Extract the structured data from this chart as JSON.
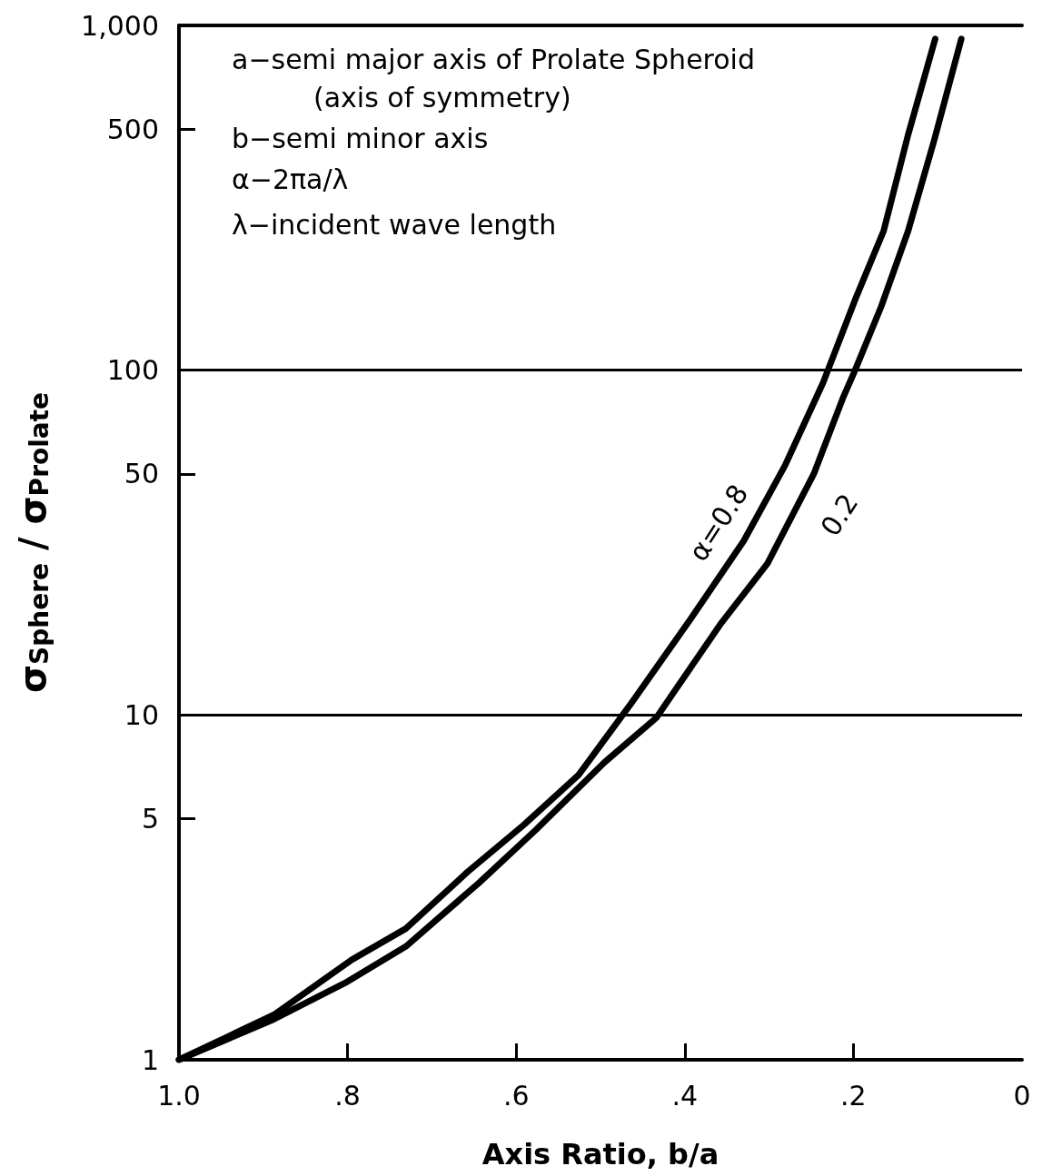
{
  "chart_data": {
    "type": "line",
    "xlabel": "Axis Ratio, b/a",
    "ylabel": "σ$_{Sphere}$ / σ$_{Prolate}$",
    "annotations": [
      "a−semi major axis of Prolate Spheroid\n(axis of symmetry)",
      "b−semi minor axis",
      "α−2πa/λ",
      "λ−incident wave length"
    ],
    "log": "y",
    "xlim": [
      1,
      0
    ],
    "xticks": [
      {
        "value": 1,
        "label": "1.0"
      },
      {
        "value": 0.8,
        "label": ".8"
      },
      {
        "value": 0.6,
        "label": ".6"
      },
      {
        "value": 0.4,
        "label": ".4"
      },
      {
        "value": 0.2,
        "label": ".2"
      },
      0
    ],
    "ylim": [
      1,
      1000
    ],
    "yticks": [
      1,
      5,
      10,
      50,
      100,
      500,
      {
        "value": 1000,
        "label": "1,000"
      }
    ],
    "ref_lines": [
      {
        "axis": "y",
        "value": 10
      },
      {
        "axis": "y",
        "value": 100
      }
    ],
    "marker": "none",
    "line_style": "solid",
    "series": [
      {
        "name": "α=0.8",
        "color": "#000000",
        "x": [
          1,
          0.8875,
          0.795,
          0.731,
          0.658,
          0.591,
          0.526,
          0.4625,
          0.393,
          0.33,
          0.281,
          0.236,
          0.198,
          0.164,
          0.135,
          0.103
        ],
        "values": [
          1,
          1.35,
          1.95,
          2.4,
          3.5,
          4.8,
          6.7,
          10.9,
          19,
          32,
          53,
          92,
          160,
          254,
          483,
          914
        ]
      },
      {
        "name": "0.2",
        "color": "#000000",
        "x": [
          1,
          0.8875,
          0.803,
          0.731,
          0.644,
          0.576,
          0.495,
          0.434,
          0.358,
          0.302,
          0.247,
          0.2125,
          0.198,
          0.167,
          0.135,
          0.104,
          0.072
        ],
        "values": [
          1,
          1.31,
          1.67,
          2.13,
          3.26,
          4.66,
          7.3,
          9.8,
          18.3,
          27.5,
          50,
          83,
          100,
          153,
          254,
          466,
          914
        ]
      }
    ]
  }
}
